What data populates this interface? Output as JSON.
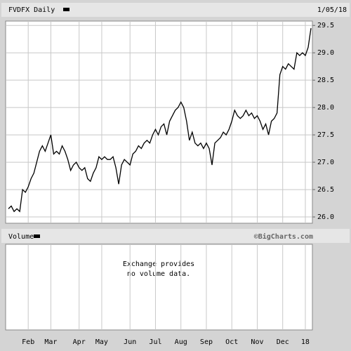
{
  "chart_data": [
    {
      "type": "line",
      "title": "FVDFX Daily",
      "date": "1/05/18",
      "color": "#000000",
      "grid": true,
      "categories": [
        null,
        null,
        null,
        null,
        null,
        null,
        null,
        "Feb",
        null,
        null,
        null,
        null,
        null,
        null,
        null,
        "Mar",
        null,
        null,
        null,
        null,
        null,
        null,
        null,
        null,
        null,
        "Apr",
        null,
        null,
        null,
        null,
        null,
        null,
        null,
        "May",
        null,
        null,
        null,
        null,
        null,
        null,
        null,
        null,
        null,
        "Jun",
        null,
        null,
        null,
        null,
        null,
        null,
        null,
        null,
        "Jul",
        null,
        null,
        null,
        null,
        null,
        null,
        null,
        null,
        "Aug",
        null,
        null,
        null,
        null,
        null,
        null,
        null,
        null,
        "Sep",
        null,
        null,
        null,
        null,
        null,
        null,
        null,
        null,
        "Oct",
        null,
        null,
        null,
        null,
        null,
        null,
        null,
        null,
        "Nov",
        null,
        null,
        null,
        null,
        null,
        null,
        null,
        null,
        "Dec",
        null,
        null,
        null,
        null,
        null,
        null,
        null,
        "18",
        null,
        null
      ],
      "values": [
        26.15,
        26.2,
        26.1,
        26.15,
        26.1,
        26.5,
        26.45,
        26.55,
        26.7,
        26.8,
        27.0,
        27.2,
        27.3,
        27.2,
        27.35,
        27.5,
        27.15,
        27.2,
        27.15,
        27.3,
        27.2,
        27.05,
        26.85,
        26.95,
        27.0,
        26.9,
        26.85,
        26.9,
        26.7,
        26.65,
        26.8,
        26.9,
        27.1,
        27.05,
        27.1,
        27.05,
        27.05,
        27.1,
        26.9,
        26.6,
        26.95,
        27.05,
        27.0,
        26.95,
        27.15,
        27.2,
        27.3,
        27.25,
        27.35,
        27.4,
        27.35,
        27.5,
        27.6,
        27.5,
        27.65,
        27.7,
        27.5,
        27.75,
        27.85,
        27.95,
        28.0,
        28.1,
        28.0,
        27.75,
        27.4,
        27.55,
        27.35,
        27.3,
        27.35,
        27.25,
        27.35,
        27.25,
        26.95,
        27.35,
        27.4,
        27.45,
        27.55,
        27.5,
        27.6,
        27.75,
        27.95,
        27.85,
        27.8,
        27.85,
        27.95,
        27.85,
        27.9,
        27.8,
        27.85,
        27.75,
        27.6,
        27.7,
        27.5,
        27.75,
        27.8,
        27.9,
        28.6,
        28.75,
        28.7,
        28.8,
        28.75,
        28.7,
        29.0,
        28.95,
        29.0,
        28.95,
        29.1,
        29.45
      ],
      "ylim": [
        25.885,
        29.58
      ],
      "yticks": [
        {
          "value": 26,
          "label": "26.0"
        },
        26.5,
        {
          "value": 27,
          "label": "27.0"
        },
        27.5,
        {
          "value": 28,
          "label": "28.0"
        },
        28.5,
        {
          "value": 29,
          "label": "29.0"
        },
        29.5
      ]
    },
    {
      "type": "bar",
      "title": "Volume",
      "credit": "©BigCharts.com",
      "annotation": [
        "Exchange provides",
        "no volume data."
      ]
    }
  ]
}
